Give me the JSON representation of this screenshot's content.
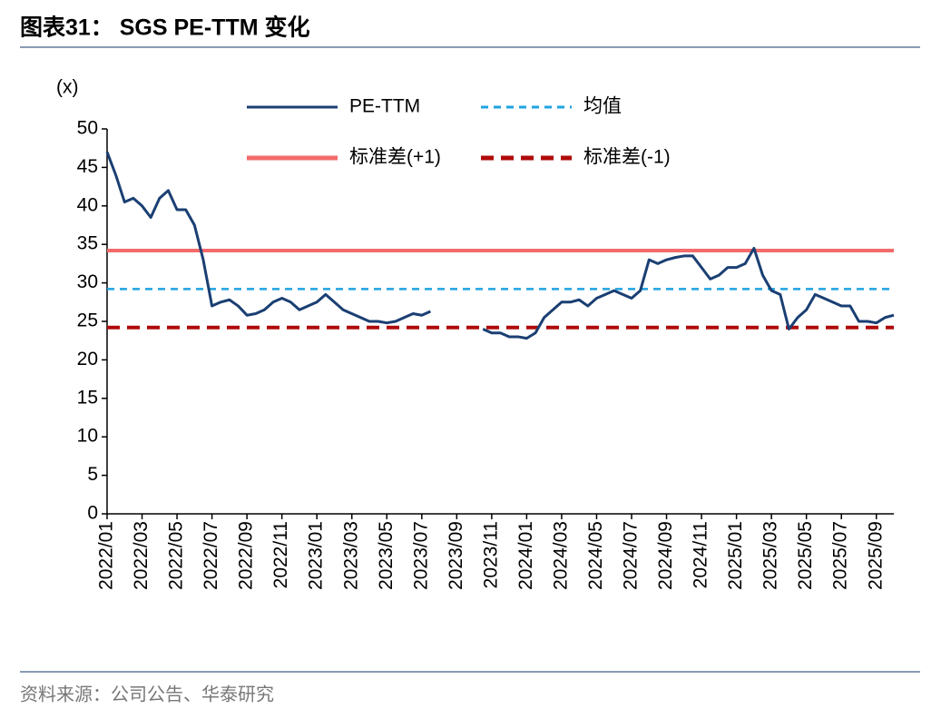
{
  "chart_data": {
    "type": "line",
    "title": "图表31： SGS PE-TTM 变化",
    "y_unit": "(x)",
    "source": "资料来源：公司公告、华泰研究",
    "categories": [
      "2022/01",
      null,
      null,
      null,
      "2022/03",
      null,
      null,
      null,
      "2022/05",
      null,
      null,
      null,
      "2022/07",
      null,
      null,
      null,
      "2022/09",
      null,
      null,
      null,
      "2022/11",
      null,
      null,
      null,
      "2023/01",
      null,
      null,
      null,
      "2023/03",
      null,
      null,
      null,
      "2023/05",
      null,
      null,
      null,
      "2023/07",
      null,
      null,
      null,
      "2023/09",
      null,
      null,
      null,
      "2023/11",
      null,
      null,
      null,
      "2024/01",
      null,
      null,
      null,
      "2024/03",
      null,
      null,
      null,
      "2024/05",
      null,
      null,
      null,
      "2024/07",
      null,
      null,
      null,
      "2024/09",
      null,
      null,
      null,
      "2024/11",
      null,
      null,
      null,
      "2025/01",
      null,
      null,
      null,
      "2025/03",
      null,
      null,
      null,
      "2025/05",
      null,
      null,
      null,
      "2025/07",
      null,
      null,
      null,
      "2025/09",
      null,
      null
    ],
    "series": [
      {
        "name": "PE-TTM",
        "color": "#1a3f73",
        "values": [
          47,
          44,
          40.5,
          41,
          40,
          38.5,
          41,
          42,
          39.5,
          39.5,
          37.5,
          33,
          27,
          27.5,
          27.8,
          27,
          25.8,
          26,
          26.5,
          27.5,
          28,
          27.5,
          26.5,
          27,
          27.5,
          28.5,
          27.5,
          26.5,
          26,
          25.5,
          25,
          25,
          24.8,
          25,
          25.5,
          26,
          25.8,
          26.3,
          null,
          null,
          null,
          null,
          null,
          24,
          23.5,
          23.5,
          23,
          23,
          22.8,
          23.5,
          25.5,
          26.5,
          27.5,
          27.5,
          27.8,
          27,
          28,
          28.5,
          29,
          28.5,
          28,
          29,
          33,
          32.5,
          33,
          33.3,
          33.5,
          33.5,
          32,
          30.5,
          31,
          32,
          32,
          32.5,
          34.5,
          31,
          29,
          28.5,
          24,
          25.5,
          26.5,
          28.5,
          28,
          27.5,
          27,
          27,
          25,
          25,
          24.8,
          25.5,
          25.8
        ]
      }
    ],
    "reference_lines": [
      {
        "name": "均值",
        "color": "#1fa3e0",
        "dashed": true,
        "value": 29.2
      },
      {
        "name": "标准差(+1)",
        "color": "#f36b6b",
        "dashed": false,
        "value": 34.2
      },
      {
        "name": "标准差(-1)",
        "color": "#b00a0a",
        "dashed": true,
        "value": 24.2
      }
    ],
    "ylim": [
      0,
      50
    ],
    "yticks": [
      0,
      5,
      10,
      15,
      20,
      25,
      30,
      35,
      40,
      45,
      50
    ]
  }
}
